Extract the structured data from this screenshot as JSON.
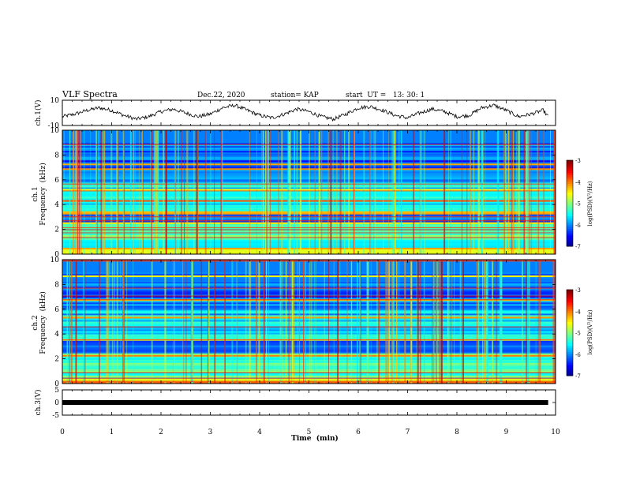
{
  "header": {
    "title": "VLF Spectra",
    "date": "Dec.22, 2020",
    "station": "station= KAP",
    "start": "start  UT =   13: 30: 1"
  },
  "chart_data": [
    {
      "type": "line",
      "panel": "ch1-waveform",
      "ylabel": "ch.1(V)",
      "ylim": [
        -10,
        10
      ],
      "y_ticks": [
        "10",
        "-10"
      ],
      "xlim": [
        0,
        10
      ],
      "series": [
        {
          "x": [
            0,
            0.25,
            0.5,
            0.75,
            1,
            1.25,
            1.5,
            1.75,
            2,
            2.25,
            2.5,
            2.75,
            3,
            3.25,
            3.5,
            3.75,
            4,
            4.25,
            4.5,
            4.75,
            5,
            5.25,
            5.5,
            5.75,
            6,
            6.25,
            6.5,
            6.75,
            7,
            7.25,
            7.5,
            7.75,
            8,
            8.25,
            8.5,
            8.75,
            9,
            9.25,
            9.5,
            9.75,
            9.85
          ],
          "y": [
            -3,
            -1,
            2,
            4,
            2,
            -2,
            -5,
            -3,
            1,
            3,
            0,
            -3,
            -1,
            4,
            6,
            2,
            -2,
            -4,
            -1,
            3,
            1,
            -3,
            -5,
            -1,
            4,
            5,
            2,
            -2,
            -4,
            0,
            3,
            1,
            -3,
            -2,
            4,
            6,
            2,
            -3,
            -1,
            2,
            -3
          ]
        }
      ]
    },
    {
      "type": "heatmap",
      "panel": "ch1-spectrogram",
      "ylabel_lines": [
        "ch.1",
        "Frequency  (kHz)"
      ],
      "ylim": [
        0,
        10
      ],
      "y_ticks": [
        "0",
        "2",
        "4",
        "6",
        "8",
        "10"
      ],
      "xlim": [
        0,
        10
      ],
      "colorbar": {
        "label": "log(PSD)(V²/Hz)",
        "range": [
          -7,
          -3
        ],
        "ticks": [
          "-3",
          "-4",
          "-5",
          "-6",
          "-7"
        ]
      }
    },
    {
      "type": "heatmap",
      "panel": "ch2-spectrogram",
      "ylabel_lines": [
        "ch.2",
        "Frequency  (kHz)"
      ],
      "ylim": [
        0,
        10
      ],
      "y_ticks": [
        "0",
        "2",
        "4",
        "6",
        "8",
        "10"
      ],
      "xlim": [
        0,
        10
      ],
      "colorbar": {
        "label": "log(PSD)(V²/Hz)",
        "range": [
          -7,
          -3
        ],
        "ticks": [
          "-3",
          "-4",
          "-5",
          "-6",
          "-7"
        ]
      }
    },
    {
      "type": "line",
      "panel": "ch3-waveform",
      "ylabel": "ch.3(V)",
      "ylim": [
        -5,
        5
      ],
      "y_ticks": [
        "5",
        "0",
        "-5"
      ],
      "xlim": [
        0,
        10
      ],
      "series": [
        {
          "x": [
            0,
            9.85
          ],
          "y": [
            0,
            0
          ]
        }
      ]
    }
  ],
  "x_axis": {
    "label": "Time  (min)",
    "ticks": [
      "0",
      "1",
      "2",
      "3",
      "4",
      "5",
      "6",
      "7",
      "8",
      "9",
      "10"
    ]
  },
  "colors": {
    "colormap": [
      "#00007f",
      "#0000ff",
      "#0080ff",
      "#00ffff",
      "#80ff80",
      "#ffff00",
      "#ff8000",
      "#ff0000",
      "#7f0000"
    ],
    "axes": "#000000"
  }
}
